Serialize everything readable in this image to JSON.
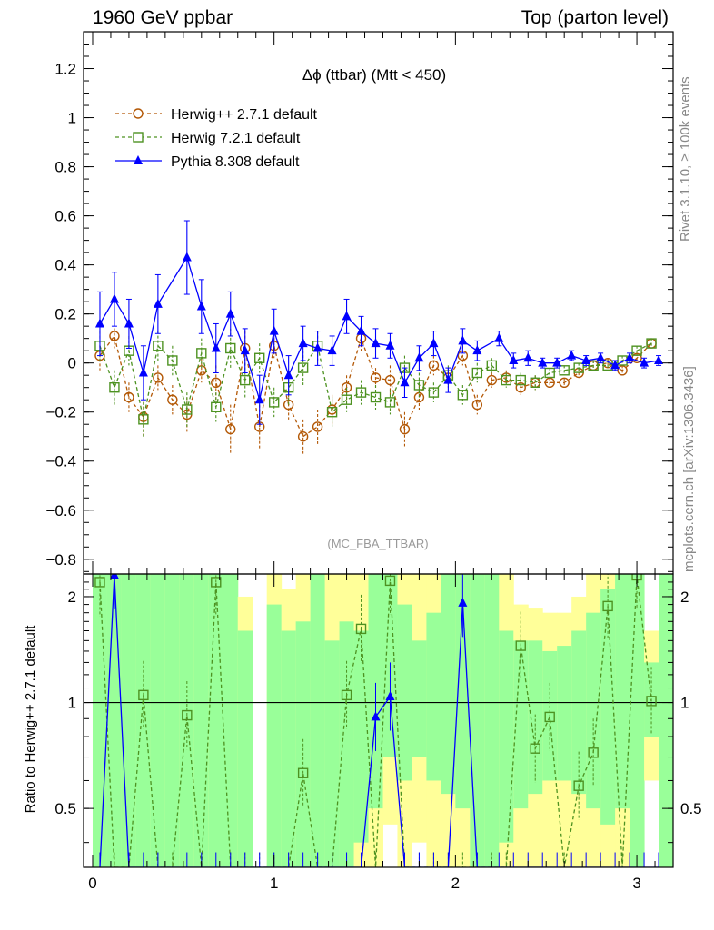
{
  "header": {
    "left": "1960 GeV ppbar",
    "right": "Top (parton level)"
  },
  "side_labels": {
    "rivet": "Rivet 3.1.10, ≥ 100k events",
    "mcplots": "mcplots.cern.ch [arXiv:1306.3436]"
  },
  "chart_data": {
    "type": "line",
    "title": "Δϕ (ttbar) (Mtt < 450)",
    "watermark": "(MC_FBA_TTBAR)",
    "xlim": [
      -0.05,
      3.2
    ],
    "ylim": [
      -0.86,
      1.35
    ],
    "x_ticks": [
      "0",
      "1",
      "2",
      "3"
    ],
    "y_ticks": [
      "−0.8",
      "−0.6",
      "−0.4",
      "−0.2",
      "0",
      "0.2",
      "0.4",
      "0.6",
      "0.8",
      "1",
      "1.2"
    ],
    "grid": false,
    "legend_position": "top-left",
    "series": [
      {
        "name": "Herwig++ 2.7.1 default",
        "color": "#b35806",
        "marker": "open-circle",
        "line": "dashed",
        "x": [
          0.04,
          0.12,
          0.2,
          0.28,
          0.36,
          0.44,
          0.52,
          0.6,
          0.68,
          0.76,
          0.84,
          0.92,
          1.0,
          1.08,
          1.16,
          1.24,
          1.32,
          1.4,
          1.48,
          1.56,
          1.64,
          1.72,
          1.8,
          1.88,
          1.96,
          2.04,
          2.12,
          2.2,
          2.28,
          2.36,
          2.44,
          2.52,
          2.6,
          2.68,
          2.76,
          2.84,
          2.92,
          3.0,
          3.08
        ],
        "y": [
          0.03,
          0.11,
          -0.14,
          -0.22,
          -0.06,
          -0.15,
          -0.21,
          -0.03,
          -0.08,
          -0.27,
          0.06,
          -0.26,
          0.07,
          -0.17,
          -0.3,
          -0.26,
          -0.19,
          -0.1,
          0.1,
          -0.06,
          -0.07,
          -0.27,
          -0.14,
          -0.01,
          -0.06,
          0.03,
          -0.17,
          -0.07,
          -0.06,
          -0.1,
          -0.08,
          -0.08,
          -0.08,
          -0.04,
          -0.01,
          0.0,
          -0.03,
          0.02,
          0.08
        ],
        "err": [
          0.06,
          0.05,
          0.06,
          0.08,
          0.05,
          0.06,
          0.07,
          0.05,
          0.07,
          0.1,
          0.07,
          0.09,
          0.05,
          0.06,
          0.07,
          0.07,
          0.06,
          0.05,
          0.05,
          0.04,
          0.06,
          0.07,
          0.05,
          0.04,
          0.04,
          0.04,
          0.04,
          0.03,
          0.03,
          0.03,
          0.03,
          0.02,
          0.02,
          0.02,
          0.02,
          0.02,
          0.02,
          0.02,
          0.02
        ]
      },
      {
        "name": "Herwig 7.2.1 default",
        "color": "#4d9221",
        "marker": "open-square",
        "line": "dashed",
        "x": [
          0.04,
          0.12,
          0.2,
          0.28,
          0.36,
          0.44,
          0.52,
          0.6,
          0.68,
          0.76,
          0.84,
          0.92,
          1.0,
          1.08,
          1.16,
          1.24,
          1.32,
          1.4,
          1.48,
          1.56,
          1.64,
          1.72,
          1.8,
          1.88,
          1.96,
          2.04,
          2.12,
          2.2,
          2.28,
          2.36,
          2.44,
          2.52,
          2.6,
          2.68,
          2.76,
          2.84,
          2.92,
          3.0,
          3.08
        ],
        "y": [
          0.07,
          -0.1,
          0.05,
          -0.23,
          0.07,
          0.01,
          -0.19,
          0.04,
          -0.18,
          0.06,
          -0.07,
          0.02,
          -0.16,
          -0.1,
          -0.02,
          0.07,
          -0.2,
          -0.15,
          -0.12,
          -0.14,
          -0.16,
          -0.02,
          -0.09,
          -0.12,
          -0.05,
          -0.13,
          -0.04,
          -0.01,
          -0.07,
          -0.07,
          -0.08,
          -0.04,
          -0.03,
          -0.02,
          -0.01,
          -0.01,
          0.01,
          0.05,
          0.08
        ],
        "err": [
          0.06,
          0.07,
          0.06,
          0.07,
          0.06,
          0.06,
          0.07,
          0.06,
          0.06,
          0.08,
          0.07,
          0.06,
          0.06,
          0.07,
          0.07,
          0.06,
          0.06,
          0.05,
          0.05,
          0.05,
          0.05,
          0.05,
          0.05,
          0.04,
          0.04,
          0.04,
          0.04,
          0.03,
          0.03,
          0.03,
          0.03,
          0.02,
          0.02,
          0.02,
          0.02,
          0.02,
          0.02,
          0.02,
          0.02
        ]
      },
      {
        "name": "Pythia 8.308 default",
        "color": "#0000ff",
        "marker": "filled-triangle",
        "line": "solid",
        "x": [
          0.04,
          0.12,
          0.2,
          0.28,
          0.36,
          0.52,
          0.6,
          0.68,
          0.76,
          0.84,
          0.92,
          1.0,
          1.08,
          1.16,
          1.24,
          1.32,
          1.4,
          1.48,
          1.56,
          1.64,
          1.72,
          1.8,
          1.88,
          1.96,
          2.04,
          2.12,
          2.24,
          2.32,
          2.4,
          2.48,
          2.56,
          2.64,
          2.72,
          2.8,
          2.88,
          2.96,
          3.04,
          3.12
        ],
        "y": [
          0.16,
          0.26,
          0.16,
          -0.04,
          0.24,
          0.43,
          0.23,
          0.06,
          0.2,
          0.05,
          -0.15,
          0.13,
          -0.05,
          0.08,
          0.06,
          0.05,
          0.19,
          0.13,
          0.08,
          0.07,
          -0.08,
          0.02,
          0.08,
          -0.07,
          0.09,
          0.05,
          0.1,
          0.01,
          0.02,
          0.0,
          0.0,
          0.03,
          0.01,
          0.02,
          -0.01,
          0.02,
          0.0,
          0.01
        ],
        "err": [
          0.13,
          0.11,
          0.1,
          0.11,
          0.12,
          0.15,
          0.11,
          0.1,
          0.09,
          0.09,
          0.1,
          0.09,
          0.08,
          0.07,
          0.07,
          0.06,
          0.07,
          0.06,
          0.06,
          0.05,
          0.06,
          0.05,
          0.05,
          0.05,
          0.05,
          0.04,
          0.03,
          0.03,
          0.03,
          0.02,
          0.02,
          0.02,
          0.02,
          0.02,
          0.02,
          0.02,
          0.02,
          0.02
        ]
      }
    ],
    "ratio": {
      "ylabel": "Ratio to Herwig++ 2.7.1 default",
      "ylim": [
        0.34,
        2.32
      ],
      "y_ticks": [
        "0.5",
        "1",
        "2"
      ],
      "reference": 1,
      "band_x": [
        0.0,
        0.08,
        0.16,
        0.24,
        0.32,
        0.4,
        0.48,
        0.56,
        0.64,
        0.72,
        0.8,
        0.88,
        0.96,
        1.04,
        1.12,
        1.2,
        1.28,
        1.36,
        1.44,
        1.52,
        1.6,
        1.68,
        1.76,
        1.84,
        1.92,
        2.0,
        2.08,
        2.16,
        2.24,
        2.32,
        2.4,
        2.48,
        2.56,
        2.64,
        2.72,
        2.8,
        2.88,
        2.96,
        3.04,
        3.12
      ],
      "band_green": [
        [
          0.34,
          2.32
        ],
        [
          0.34,
          2.32
        ],
        [
          0.34,
          2.32
        ],
        [
          0.34,
          2.32
        ],
        [
          0.34,
          2.32
        ],
        [
          0.34,
          2.32
        ],
        [
          0.34,
          2.32
        ],
        [
          0.34,
          2.32
        ],
        [
          0.34,
          2.32
        ],
        [
          0.34,
          2.32
        ],
        [
          0.34,
          1.6
        ],
        [
          0.34,
          1.8
        ],
        [
          0.34,
          1.9
        ],
        [
          0.34,
          1.6
        ],
        [
          0.34,
          1.7
        ],
        [
          0.34,
          2.32
        ],
        [
          0.34,
          1.5
        ],
        [
          0.34,
          1.7
        ],
        [
          0.4,
          1.6
        ],
        [
          0.5,
          2.32
        ],
        [
          0.7,
          2.32
        ],
        [
          0.6,
          1.9
        ],
        [
          0.7,
          1.5
        ],
        [
          0.6,
          1.8
        ],
        [
          0.55,
          2.32
        ],
        [
          0.5,
          2.32
        ],
        [
          0.34,
          2.32
        ],
        [
          0.34,
          2.32
        ],
        [
          0.4,
          1.6
        ],
        [
          0.5,
          1.5
        ],
        [
          0.55,
          1.5
        ],
        [
          0.6,
          1.4
        ],
        [
          0.6,
          1.45
        ],
        [
          0.55,
          1.6
        ],
        [
          0.5,
          1.8
        ],
        [
          0.45,
          2.1
        ],
        [
          0.5,
          2.32
        ],
        [
          0.34,
          2.32
        ],
        [
          0.8,
          1.3
        ],
        [
          0.34,
          2.32
        ]
      ],
      "band_yellow": [
        [
          0.34,
          2.32
        ],
        [
          0.34,
          2.32
        ],
        [
          0.34,
          2.32
        ],
        [
          0.34,
          2.32
        ],
        [
          0.34,
          2.32
        ],
        [
          0.34,
          2.32
        ],
        [
          0.34,
          2.32
        ],
        [
          0.34,
          2.32
        ],
        [
          0.34,
          2.32
        ],
        [
          0.34,
          2.32
        ],
        [
          0.34,
          2.0
        ],
        [
          0.34,
          2.32
        ],
        [
          0.34,
          2.32
        ],
        [
          0.34,
          2.1
        ],
        [
          0.34,
          2.32
        ],
        [
          0.34,
          2.32
        ],
        [
          0.34,
          2.32
        ],
        [
          0.34,
          2.32
        ],
        [
          0.34,
          2.32
        ],
        [
          0.34,
          2.32
        ],
        [
          0.45,
          2.32
        ],
        [
          0.34,
          2.32
        ],
        [
          0.4,
          2.32
        ],
        [
          0.34,
          2.32
        ],
        [
          0.34,
          2.32
        ],
        [
          0.34,
          2.32
        ],
        [
          0.34,
          2.32
        ],
        [
          0.34,
          2.32
        ],
        [
          0.34,
          2.32
        ],
        [
          0.34,
          1.9
        ],
        [
          0.34,
          1.85
        ],
        [
          0.34,
          1.8
        ],
        [
          0.34,
          1.8
        ],
        [
          0.34,
          2.0
        ],
        [
          0.34,
          2.32
        ],
        [
          0.34,
          2.32
        ],
        [
          0.34,
          2.32
        ],
        [
          0.34,
          2.32
        ],
        [
          0.6,
          1.6
        ],
        [
          0.34,
          2.32
        ]
      ],
      "band_gaps": [
        11
      ],
      "herwig7": {
        "x": [
          0.04,
          0.12,
          0.2,
          0.28,
          0.36,
          0.44,
          0.52,
          0.6,
          0.68,
          0.76,
          0.84,
          0.92,
          1.0,
          1.08,
          1.16,
          1.24,
          1.32,
          1.4,
          1.48,
          1.56,
          1.64,
          1.72,
          1.8,
          1.88,
          1.96,
          2.04,
          2.12,
          2.2,
          2.28,
          2.36,
          2.44,
          2.52,
          2.6,
          2.68,
          2.76,
          2.84,
          2.92,
          3.0,
          3.08
        ],
        "y": [
          2.2,
          0.3,
          0.3,
          1.05,
          0.3,
          0.3,
          0.92,
          0.3,
          2.2,
          0.3,
          0.3,
          0.3,
          0.3,
          0.3,
          0.63,
          0.3,
          0.3,
          1.05,
          1.62,
          0.3,
          2.22,
          0.3,
          0.3,
          0.3,
          0.3,
          0.3,
          0.3,
          0.3,
          0.3,
          1.45,
          0.74,
          0.91,
          0.3,
          0.58,
          0.72,
          1.88,
          0.3,
          2.3,
          1.01
        ]
      },
      "pythia": {
        "x": [
          0.04,
          0.12,
          0.2,
          0.28,
          0.36,
          0.52,
          0.6,
          0.68,
          0.76,
          0.84,
          0.92,
          1.0,
          1.08,
          1.16,
          1.24,
          1.32,
          1.4,
          1.48,
          1.56,
          1.64,
          1.72,
          1.8,
          1.88,
          1.96,
          2.04,
          2.12,
          2.24,
          2.32,
          2.4,
          2.48,
          2.56,
          2.64,
          2.72,
          2.8,
          2.88,
          2.96,
          3.04,
          3.12
        ],
        "y": [
          0.3,
          2.3,
          0.3,
          0.3,
          0.3,
          0.3,
          0.3,
          0.3,
          0.3,
          0.3,
          0.3,
          0.3,
          0.3,
          0.3,
          0.3,
          0.3,
          0.3,
          0.3,
          0.91,
          1.04,
          0.3,
          0.3,
          0.3,
          0.3,
          1.92,
          0.3,
          0.3,
          0.3,
          0.3,
          0.3,
          0.3,
          0.3,
          0.3,
          0.3,
          0.3,
          0.3,
          0.3,
          0.3
        ]
      }
    }
  }
}
